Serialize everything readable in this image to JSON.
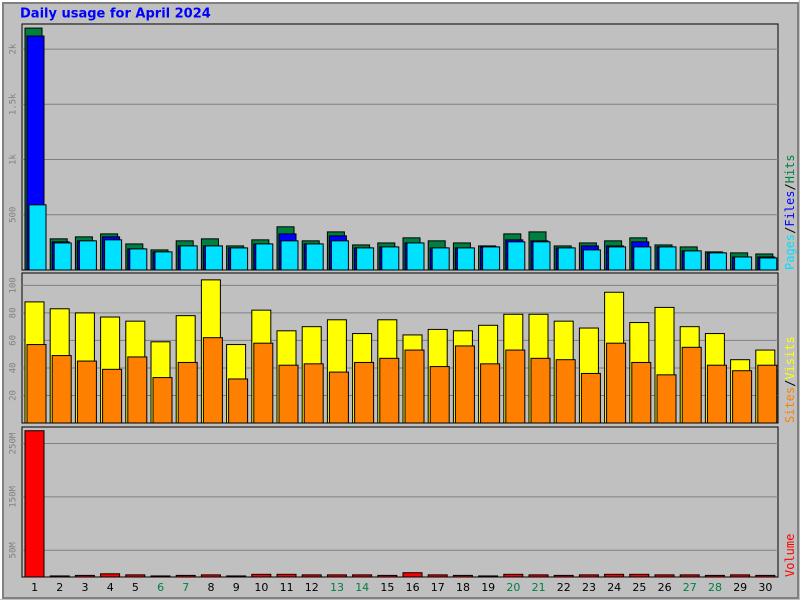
{
  "chart_data": {
    "type": "bar",
    "title": "Daily usage for April 2024",
    "categories": [
      "1",
      "2",
      "3",
      "4",
      "5",
      "6",
      "7",
      "8",
      "9",
      "10",
      "11",
      "12",
      "13",
      "14",
      "15",
      "16",
      "17",
      "18",
      "19",
      "20",
      "21",
      "22",
      "23",
      "24",
      "25",
      "26",
      "27",
      "28",
      "29",
      "30"
    ],
    "category_colors": [
      "#000000",
      "#000000",
      "#000000",
      "#000000",
      "#000000",
      "#008040",
      "#008040",
      "#000000",
      "#000000",
      "#000000",
      "#000000",
      "#000000",
      "#008040",
      "#008040",
      "#000000",
      "#000000",
      "#000000",
      "#000000",
      "#000000",
      "#008040",
      "#008040",
      "#000000",
      "#000000",
      "#000000",
      "#000000",
      "#000000",
      "#008040",
      "#008040",
      "#000000",
      "#000000"
    ],
    "legend_separator": "/",
    "grid": true,
    "panels": [
      {
        "ylim": [
          0,
          2227
        ],
        "yticks": [
          {
            "value": 500,
            "label": "500"
          },
          {
            "value": 1000,
            "label": "1k"
          },
          {
            "value": 1500,
            "label": "1.5k"
          },
          {
            "value": 2000,
            "label": "2k"
          }
        ],
        "series": [
          {
            "name": "Hits",
            "color": "#008040",
            "values": [
              2190,
              282,
              300,
              327,
              236,
              182,
              264,
              282,
              218,
              273,
              391,
              264,
              345,
              227,
              245,
              291,
              264,
              245,
              218,
              327,
              345,
              218,
              245,
              264,
              291,
              227,
              209,
              164,
              155,
              145
            ]
          },
          {
            "name": "Files",
            "color": "#0000ff",
            "values": [
              2118,
              255,
              264,
              300,
              191,
              164,
              218,
              218,
              200,
              236,
              327,
              236,
              309,
              200,
              209,
              245,
              200,
              200,
              209,
              273,
              264,
              200,
              218,
              218,
              255,
              209,
              173,
              155,
              118,
              118
            ]
          },
          {
            "name": "Pages",
            "color": "#00e0ff",
            "values": [
              590,
              245,
              264,
              273,
              191,
              164,
              218,
              218,
              200,
              236,
              264,
              236,
              264,
              200,
              209,
              245,
              200,
              200,
              209,
              255,
              255,
              200,
              182,
              209,
              209,
              209,
              173,
              155,
              118,
              109
            ]
          }
        ]
      },
      {
        "ylim": [
          0,
          109
        ],
        "yticks": [
          20,
          40,
          60,
          80,
          100
        ],
        "series": [
          {
            "name": "Visits",
            "color": "#ffff00",
            "values": [
              88,
              83,
              80,
              77,
              74,
              59,
              78,
              104,
              57,
              82,
              67,
              70,
              75,
              65,
              75,
              64,
              68,
              67,
              71,
              79,
              79,
              74,
              69,
              95,
              73,
              84,
              70,
              65,
              46,
              53
            ]
          },
          {
            "name": "Sites",
            "color": "#ff8000",
            "values": [
              57,
              49,
              45,
              39,
              48,
              33,
              44,
              62,
              32,
              58,
              42,
              43,
              37,
              44,
              47,
              53,
              41,
              56,
              43,
              53,
              47,
              46,
              36,
              58,
              44,
              35,
              55,
              42,
              38,
              42
            ]
          }
        ]
      },
      {
        "ylim": [
          0,
          281
        ],
        "yticks": [
          {
            "value": 50,
            "label": "50M"
          },
          {
            "value": 150,
            "label": "150M"
          },
          {
            "value": 250,
            "label": "250M"
          }
        ],
        "series": [
          {
            "name": "Volume",
            "color": "#ff0000",
            "values": [
              274,
              2,
              3,
              6,
              4,
              2,
              3,
              4,
              2,
              5,
              5,
              4,
              4,
              4,
              3,
              8,
              4,
              3,
              2,
              5,
              4,
              3,
              4,
              5,
              5,
              4,
              4,
              3,
              4,
              3
            ]
          }
        ]
      }
    ]
  }
}
